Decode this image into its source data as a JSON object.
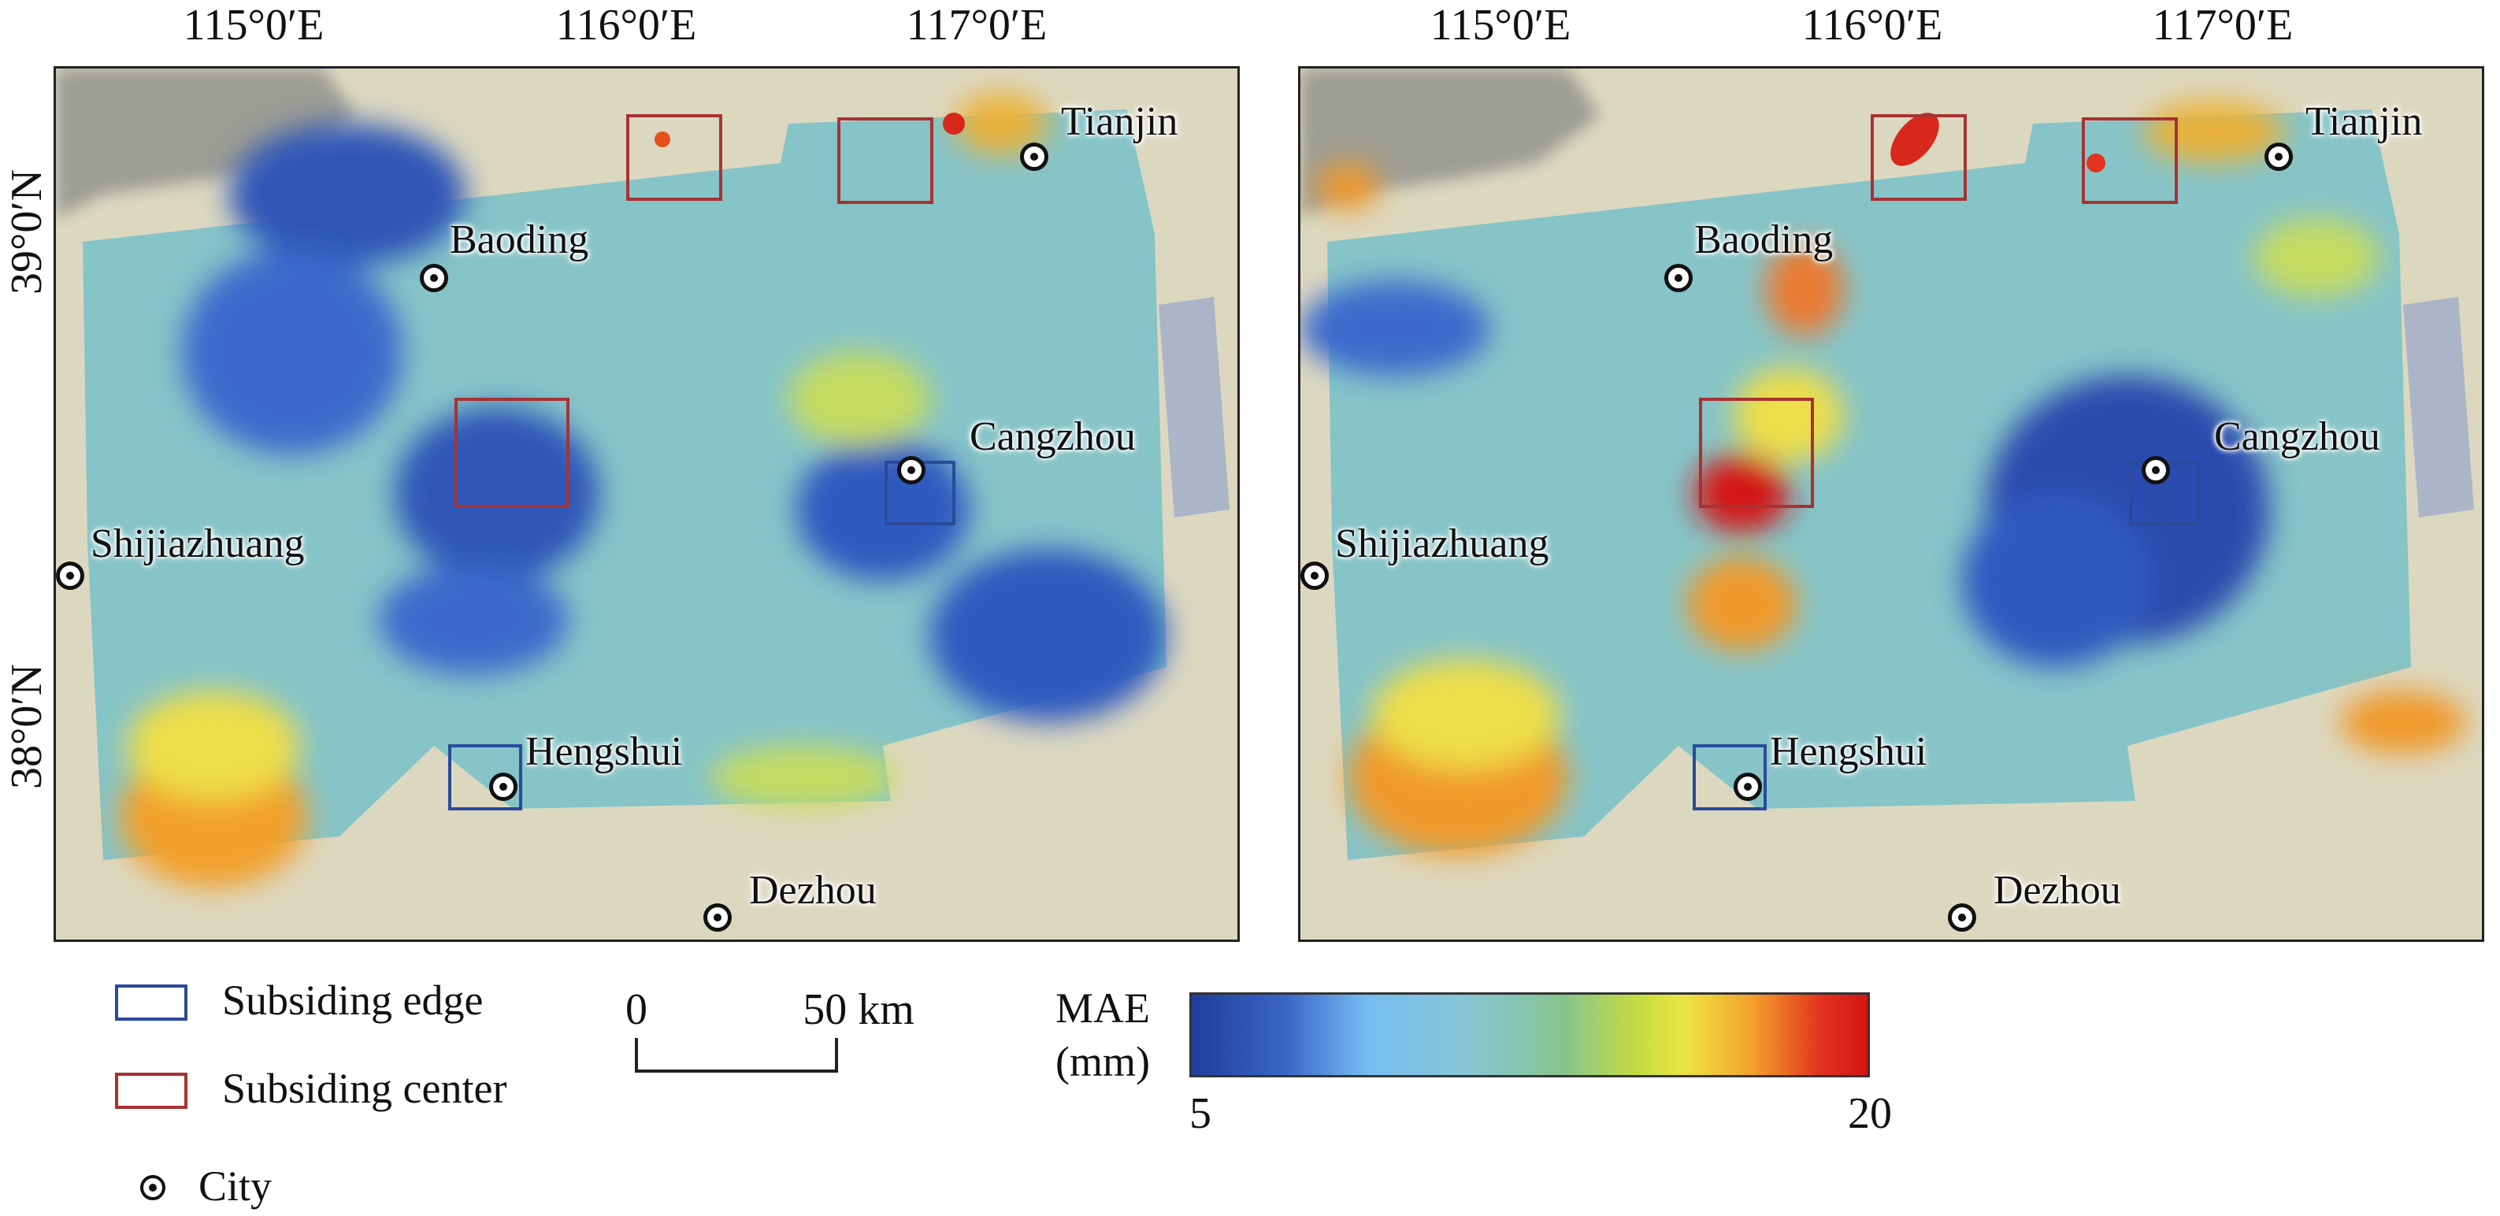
{
  "map_grid": {
    "longitudes": [
      "115°0′E",
      "116°0′E",
      "117°0′E"
    ],
    "latitudes": [
      "39°0′N",
      "38°0′N"
    ]
  },
  "cities": [
    {
      "name": "Tianjin"
    },
    {
      "name": "Baoding"
    },
    {
      "name": "Cangzhou"
    },
    {
      "name": "Shijiazhuang"
    },
    {
      "name": "Hengshui"
    },
    {
      "name": "Dezhou"
    }
  ],
  "legend": {
    "subsiding_edge": {
      "label": "Subsiding edge",
      "color": "#2a4a9a"
    },
    "subsiding_center": {
      "label": "Subsiding center",
      "color": "#a83232"
    },
    "city": {
      "label": "City"
    }
  },
  "scale_bar": {
    "start": "0",
    "end": "50 km"
  },
  "colorbar": {
    "title_line1": "MAE",
    "title_line2": "(mm)",
    "min": "5",
    "max": "20",
    "colors": [
      "#1e3e9a",
      "#3a66c8",
      "#76bdf0",
      "#86c6d8",
      "#86c48e",
      "#c6dc40",
      "#ece444",
      "#f4a02a",
      "#e2341e",
      "#d41414"
    ]
  }
}
